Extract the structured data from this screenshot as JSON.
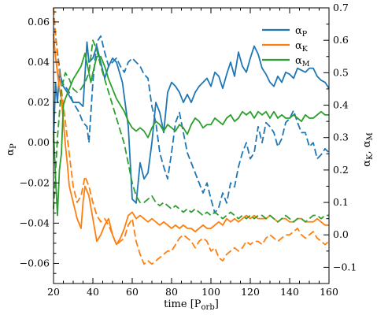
{
  "chart_data": {
    "type": "line",
    "title": "",
    "xlabel": "time [P",
    "xlabel_sub": "orb",
    "xlabel_close": "]",
    "ylabel_left": "α",
    "ylabel_left_sub": "P",
    "ylabel_right": "α",
    "ylabel_right_sub1": "K",
    "ylabel_right_sep": ", α",
    "ylabel_right_sub2": "M",
    "xlim": [
      20,
      160
    ],
    "ylim_left": [
      -0.07,
      0.067
    ],
    "ylim_right": [
      -0.15,
      0.7
    ],
    "x_ticks": [
      20,
      40,
      60,
      80,
      100,
      120,
      140,
      160
    ],
    "x_tick_labels": [
      "20",
      "40",
      "60",
      "80",
      "100",
      "120",
      "140",
      "160"
    ],
    "y_left_ticks": [
      -0.06,
      -0.04,
      -0.02,
      0.0,
      0.02,
      0.04,
      0.06
    ],
    "y_left_tick_labels": [
      "−0.06",
      "−0.04",
      "−0.02",
      "0.00",
      "0.02",
      "0.04",
      "0.06"
    ],
    "y_right_ticks": [
      -0.1,
      0.0,
      0.1,
      0.2,
      0.3,
      0.4,
      0.5,
      0.6,
      0.7
    ],
    "y_right_tick_labels": [
      "−0.1",
      "0.0",
      "0.1",
      "0.2",
      "0.3",
      "0.4",
      "0.5",
      "0.6",
      "0.7"
    ],
    "legend_position": "top-right",
    "legend": [
      {
        "symbol": "α",
        "sub": "P",
        "color": "#1f77b4"
      },
      {
        "symbol": "α",
        "sub": "K",
        "color": "#ff7f0e"
      },
      {
        "symbol": "α",
        "sub": "M",
        "color": "#2ca02c"
      }
    ],
    "series": [
      {
        "key": "alphaP_solid",
        "axis": "left",
        "color": "#1f77b4",
        "dash": false,
        "x": [
          20,
          21,
          22,
          23,
          25,
          27,
          30,
          33,
          35,
          37,
          38,
          40,
          42,
          44,
          46,
          48,
          50,
          52,
          55,
          58,
          60,
          62,
          64,
          66,
          68,
          70,
          72,
          74,
          76,
          78,
          80,
          82,
          84,
          86,
          88,
          90,
          92,
          94,
          96,
          98,
          100,
          102,
          104,
          106,
          108,
          110,
          112,
          114,
          116,
          118,
          120,
          122,
          124,
          126,
          128,
          130,
          132,
          134,
          136,
          138,
          140,
          142,
          144,
          146,
          148,
          150,
          152,
          154,
          156,
          158,
          160
        ],
        "y": [
          0.0,
          0.03,
          0.02,
          0.035,
          0.028,
          0.025,
          0.02,
          0.02,
          0.018,
          0.05,
          0.04,
          0.042,
          0.048,
          0.04,
          0.032,
          0.038,
          0.042,
          0.04,
          0.03,
          0.008,
          -0.028,
          -0.03,
          -0.01,
          -0.018,
          -0.015,
          0.0,
          0.02,
          0.015,
          0.005,
          0.025,
          0.03,
          0.028,
          0.025,
          0.02,
          0.024,
          0.02,
          0.025,
          0.028,
          0.03,
          0.032,
          0.028,
          0.035,
          0.033,
          0.027,
          0.034,
          0.04,
          0.033,
          0.045,
          0.038,
          0.035,
          0.042,
          0.048,
          0.044,
          0.037,
          0.034,
          0.03,
          0.028,
          0.033,
          0.03,
          0.035,
          0.034,
          0.032,
          0.037,
          0.036,
          0.035,
          0.037,
          0.037,
          0.033,
          0.031,
          0.03,
          0.027
        ]
      },
      {
        "key": "alphaP_dashed",
        "axis": "left",
        "color": "#1f77b4",
        "dash": true,
        "x": [
          20,
          22,
          24,
          26,
          28,
          30,
          33,
          35,
          37,
          38,
          40,
          42,
          44,
          46,
          48,
          50,
          52,
          54,
          56,
          58,
          60,
          62,
          64,
          66,
          68,
          70,
          72,
          74,
          76,
          78,
          80,
          82,
          84,
          86,
          88,
          90,
          92,
          94,
          96,
          98,
          100,
          102,
          104,
          106,
          108,
          110,
          112,
          114,
          116,
          118,
          120,
          122,
          124,
          126,
          128,
          130,
          132,
          134,
          136,
          138,
          140,
          142,
          144,
          146,
          148,
          150,
          152,
          154,
          156,
          158,
          160
        ],
        "y": [
          0.062,
          0.045,
          0.03,
          0.028,
          0.025,
          0.02,
          0.015,
          0.01,
          0.008,
          0.0,
          0.03,
          0.05,
          0.053,
          0.045,
          0.038,
          0.04,
          0.042,
          0.038,
          0.035,
          0.04,
          0.042,
          0.04,
          0.038,
          0.034,
          0.032,
          0.018,
          0.01,
          -0.005,
          -0.012,
          -0.018,
          -0.005,
          0.01,
          0.015,
          0.005,
          -0.005,
          -0.01,
          -0.015,
          -0.02,
          -0.025,
          -0.02,
          -0.028,
          -0.035,
          -0.032,
          -0.025,
          -0.03,
          -0.02,
          -0.022,
          -0.012,
          -0.005,
          0.0,
          -0.008,
          -0.005,
          0.008,
          0.0,
          0.01,
          0.008,
          0.005,
          -0.002,
          0.002,
          0.01,
          0.012,
          0.016,
          0.01,
          0.005,
          0.005,
          -0.002,
          0.0,
          -0.008,
          -0.006,
          -0.003,
          -0.005
        ]
      },
      {
        "key": "alphaK_solid",
        "axis": "right",
        "color": "#ff7f0e",
        "dash": false,
        "x": [
          20,
          21,
          22,
          23,
          24,
          25,
          26,
          27,
          28,
          30,
          32,
          34,
          35,
          36,
          38,
          40,
          42,
          44,
          46,
          48,
          50,
          52,
          54,
          56,
          58,
          60,
          62,
          64,
          66,
          68,
          70,
          72,
          74,
          76,
          78,
          80,
          82,
          84,
          86,
          88,
          90,
          92,
          94,
          96,
          98,
          100,
          102,
          104,
          106,
          108,
          110,
          112,
          114,
          116,
          118,
          120,
          122,
          124,
          126,
          128,
          130,
          132,
          134,
          136,
          138,
          140,
          142,
          144,
          146,
          148,
          150,
          152,
          154,
          156,
          158,
          160
        ],
        "y": [
          0.62,
          0.55,
          0.5,
          0.45,
          0.42,
          0.35,
          0.28,
          0.22,
          0.15,
          0.1,
          0.05,
          0.02,
          0.1,
          0.15,
          0.12,
          0.05,
          -0.02,
          0.0,
          0.03,
          0.05,
          0.0,
          -0.03,
          -0.01,
          0.02,
          0.06,
          0.07,
          0.05,
          0.06,
          0.05,
          0.04,
          0.05,
          0.04,
          0.03,
          0.04,
          0.03,
          0.02,
          0.03,
          0.02,
          0.03,
          0.02,
          0.02,
          0.01,
          0.02,
          0.03,
          0.02,
          0.02,
          0.03,
          0.04,
          0.03,
          0.05,
          0.04,
          0.05,
          0.04,
          0.05,
          0.06,
          0.05,
          0.06,
          0.05,
          0.05,
          0.05,
          0.06,
          0.05,
          0.04,
          0.05,
          0.05,
          0.04,
          0.04,
          0.05,
          0.05,
          0.04,
          0.04,
          0.04,
          0.05,
          0.04,
          0.03,
          0.03
        ]
      },
      {
        "key": "alphaK_dashed",
        "axis": "right",
        "color": "#ff7f0e",
        "dash": true,
        "x": [
          20,
          22,
          24,
          26,
          28,
          30,
          32,
          34,
          36,
          38,
          40,
          42,
          44,
          46,
          48,
          50,
          52,
          54,
          56,
          58,
          60,
          62,
          64,
          66,
          68,
          70,
          72,
          74,
          76,
          78,
          80,
          82,
          84,
          86,
          88,
          90,
          92,
          94,
          96,
          98,
          100,
          102,
          104,
          106,
          108,
          110,
          112,
          114,
          116,
          118,
          120,
          122,
          124,
          126,
          128,
          130,
          132,
          134,
          136,
          138,
          140,
          142,
          144,
          146,
          148,
          150,
          152,
          154,
          156,
          158,
          160
        ],
        "y": [
          0.7,
          0.55,
          0.45,
          0.35,
          0.25,
          0.15,
          0.1,
          0.12,
          0.18,
          0.15,
          0.1,
          0.06,
          0.04,
          0.05,
          0.03,
          0.0,
          -0.03,
          -0.02,
          -0.01,
          0.03,
          0.05,
          -0.02,
          -0.06,
          -0.09,
          -0.08,
          -0.09,
          -0.08,
          -0.07,
          -0.06,
          -0.05,
          -0.05,
          -0.03,
          -0.01,
          0.0,
          -0.01,
          -0.02,
          -0.04,
          -0.02,
          -0.01,
          -0.02,
          -0.05,
          -0.04,
          -0.07,
          -0.08,
          -0.06,
          -0.05,
          -0.04,
          -0.05,
          -0.04,
          -0.02,
          -0.03,
          -0.02,
          -0.02,
          -0.03,
          -0.01,
          0.0,
          -0.01,
          -0.02,
          -0.01,
          0.0,
          0.0,
          0.01,
          0.02,
          0.0,
          -0.01,
          0.0,
          0.01,
          -0.01,
          -0.02,
          -0.03,
          -0.02
        ]
      },
      {
        "key": "alphaM_solid",
        "axis": "right",
        "color": "#2ca02c",
        "dash": false,
        "x": [
          20,
          21,
          22,
          23,
          24,
          25,
          26,
          28,
          30,
          32,
          34,
          36,
          38,
          39,
          40,
          42,
          44,
          46,
          48,
          50,
          52,
          54,
          56,
          58,
          60,
          62,
          64,
          66,
          68,
          70,
          72,
          74,
          76,
          78,
          80,
          82,
          84,
          86,
          88,
          90,
          92,
          94,
          96,
          98,
          100,
          102,
          104,
          106,
          108,
          110,
          112,
          114,
          116,
          118,
          120,
          122,
          124,
          126,
          128,
          130,
          132,
          134,
          136,
          138,
          140,
          142,
          144,
          146,
          148,
          150,
          152,
          154,
          156,
          158,
          160
        ],
        "y": [
          0.32,
          0.18,
          0.06,
          0.2,
          0.25,
          0.4,
          0.42,
          0.45,
          0.48,
          0.5,
          0.52,
          0.56,
          0.5,
          0.47,
          0.5,
          0.55,
          0.55,
          0.52,
          0.48,
          0.45,
          0.42,
          0.4,
          0.38,
          0.35,
          0.33,
          0.32,
          0.33,
          0.32,
          0.3,
          0.33,
          0.35,
          0.34,
          0.32,
          0.34,
          0.33,
          0.32,
          0.34,
          0.33,
          0.31,
          0.34,
          0.36,
          0.35,
          0.33,
          0.34,
          0.34,
          0.36,
          0.35,
          0.34,
          0.36,
          0.37,
          0.35,
          0.36,
          0.38,
          0.37,
          0.38,
          0.36,
          0.38,
          0.37,
          0.38,
          0.36,
          0.38,
          0.36,
          0.37,
          0.36,
          0.36,
          0.37,
          0.36,
          0.35,
          0.37,
          0.36,
          0.36,
          0.37,
          0.38,
          0.37,
          0.37
        ]
      },
      {
        "key": "alphaM_dashed",
        "axis": "right",
        "color": "#2ca02c",
        "dash": true,
        "x": [
          20,
          22,
          24,
          26,
          28,
          30,
          32,
          34,
          36,
          38,
          40,
          42,
          44,
          46,
          48,
          50,
          52,
          54,
          56,
          58,
          60,
          62,
          64,
          66,
          68,
          70,
          72,
          74,
          76,
          78,
          80,
          82,
          84,
          86,
          88,
          90,
          92,
          94,
          96,
          98,
          100,
          102,
          104,
          106,
          108,
          110,
          112,
          114,
          116,
          118,
          120,
          122,
          124,
          126,
          128,
          130,
          132,
          134,
          136,
          138,
          140,
          142,
          144,
          146,
          148,
          150,
          152,
          154,
          156,
          158,
          160
        ],
        "y": [
          0.08,
          0.3,
          0.45,
          0.5,
          0.48,
          0.45,
          0.44,
          0.45,
          0.47,
          0.5,
          0.6,
          0.57,
          0.52,
          0.48,
          0.44,
          0.4,
          0.36,
          0.32,
          0.28,
          0.22,
          0.16,
          0.12,
          0.1,
          0.1,
          0.11,
          0.12,
          0.1,
          0.09,
          0.1,
          0.09,
          0.08,
          0.09,
          0.08,
          0.07,
          0.08,
          0.07,
          0.08,
          0.07,
          0.06,
          0.07,
          0.06,
          0.07,
          0.06,
          0.05,
          0.06,
          0.07,
          0.06,
          0.05,
          0.06,
          0.05,
          0.06,
          0.05,
          0.06,
          0.06,
          0.05,
          0.06,
          0.05,
          0.04,
          0.05,
          0.06,
          0.05,
          0.04,
          0.05,
          0.05,
          0.04,
          0.05,
          0.06,
          0.06,
          0.05,
          0.06,
          0.06
        ]
      }
    ]
  }
}
